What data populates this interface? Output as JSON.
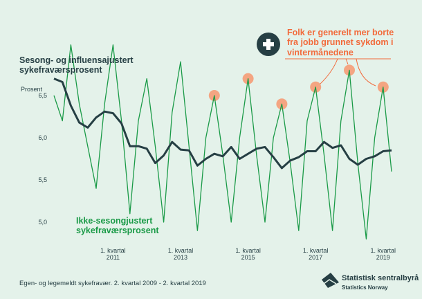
{
  "chart_data": {
    "type": "line",
    "y_label": "Prosent",
    "categories": [
      null,
      null,
      null,
      null,
      null,
      null,
      null,
      "1. kvartal\n2011",
      null,
      null,
      null,
      null,
      null,
      null,
      null,
      "1. kvartal\n2013",
      null,
      null,
      null,
      null,
      null,
      null,
      null,
      "1. kvartal\n2015",
      null,
      null,
      null,
      null,
      null,
      null,
      null,
      "1. kvartal\n2017",
      null,
      null,
      null,
      null,
      null,
      null,
      null,
      "1. kvartal\n2019",
      null
    ],
    "series": [
      {
        "name": "Sesong- og influensajustert\nsykefraværsprosent",
        "color": "#263f44",
        "values": [
          6.7,
          6.66,
          6.38,
          6.18,
          6.12,
          6.24,
          6.31,
          6.29,
          6.17,
          5.9,
          5.9,
          5.87,
          5.7,
          5.79,
          5.95,
          5.86,
          5.85,
          5.67,
          5.75,
          5.81,
          5.78,
          5.89,
          5.75,
          5.81,
          5.87,
          5.89,
          5.77,
          5.64,
          5.73,
          5.77,
          5.84,
          5.84,
          5.95,
          5.88,
          5.91,
          5.75,
          5.68,
          5.75,
          5.78,
          5.84,
          5.85
        ]
      },
      {
        "name": "Ikke-sesongjustert\nsykefraværsprosent",
        "color": "#1a9a47",
        "values": [
          6.5,
          6.2,
          7.1,
          6.4,
          5.9,
          5.4,
          6.4,
          7.1,
          6.2,
          5.1,
          6.2,
          6.7,
          5.9,
          5.0,
          6.3,
          6.9,
          5.9,
          4.9,
          6.0,
          6.5,
          5.8,
          5.0,
          6.0,
          6.7,
          5.8,
          5.0,
          6.0,
          6.4,
          5.7,
          4.9,
          6.2,
          6.6,
          5.8,
          4.9,
          6.2,
          6.8,
          5.7,
          4.8,
          6.0,
          6.6,
          5.6
        ]
      }
    ],
    "highlight_points": [
      19,
      23,
      27,
      31,
      35,
      39
    ],
    "highlight_color": "#f4a582",
    "annotation": "Folk er generelt mer borte\nfra jobb grunnet sykdom i\nvintermånedene",
    "ylim": [
      4.8,
      7.2
    ],
    "yticks": [
      {
        "value": 5.0,
        "label": "5,0"
      },
      {
        "value": 5.5,
        "label": "5,5"
      },
      {
        "value": 6.0,
        "label": "6,0"
      },
      {
        "value": 6.5,
        "label": "6,5"
      }
    ],
    "note": "Egen- og legemeldt sykefravær. 2. kvartal 2009 - 2. kvartal 2019",
    "source": "Statistisk sentralbyrå",
    "source_en": "Statistics Norway"
  }
}
